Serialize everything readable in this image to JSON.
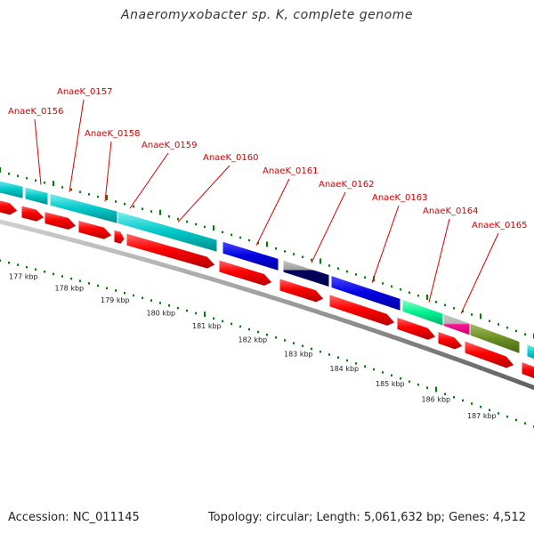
{
  "title": "Anaeromyxobacter sp. K, complete genome",
  "footer": {
    "accession": "Accession: NC_011145",
    "stats": "Topology: circular; Length: 5,061,632 bp; Genes: 4,512"
  },
  "colors": {
    "gene_label": "#d40000",
    "cds": "#ff0000",
    "tick": "#008000",
    "backbone": "#888888"
  },
  "gene_labels": [
    "AnaeK_0156",
    "AnaeK_0157",
    "AnaeK_0158",
    "AnaeK_0159",
    "AnaeK_0160",
    "AnaeK_0161",
    "AnaeK_0162",
    "AnaeK_0163",
    "AnaeK_0164",
    "AnaeK_0165"
  ],
  "kbp_labels": [
    "177 kbp",
    "178 kbp",
    "179 kbp",
    "180 kbp",
    "181 kbp",
    "182 kbp",
    "183 kbp",
    "184 kbp",
    "185 kbp",
    "186 kbp",
    "187 kbp"
  ],
  "feature_colors": [
    "#00c8c8",
    "#00c8c8",
    "#00c8c8",
    "#00c8c8",
    "#0000e0",
    "#000080",
    "#0000e0",
    "#00ff90",
    "#ff1493",
    "#6b8e23"
  ]
}
